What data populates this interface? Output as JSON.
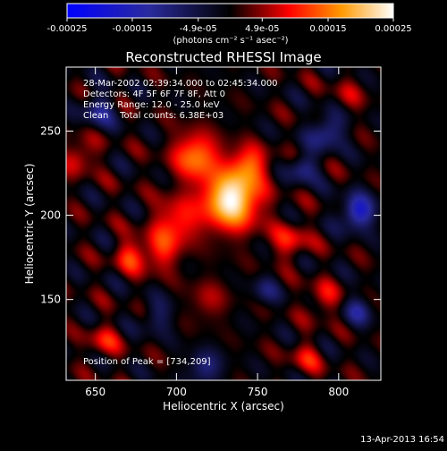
{
  "colorbar": {
    "tick_labels": [
      "-0.00025",
      "-0.00015",
      "-4.9e-05",
      "4.9e-05",
      "0.00015",
      "0.00025"
    ],
    "tick_values": [
      -0.00025,
      -0.00015,
      -4.9e-05,
      4.9e-05,
      0.00015,
      0.00025
    ],
    "range": [
      -0.00025,
      0.00025
    ],
    "units_label": "(photons cm⁻² s⁻¹ asec⁻²)",
    "colors": [
      "#0000ff",
      "#000000",
      "#ff0000",
      "#ff9900",
      "#ffffff"
    ]
  },
  "chart_data": {
    "type": "heatmap",
    "title": "Reconstructed RHESSI Image",
    "xlabel": "Heliocentric X (arcsec)",
    "ylabel": "Heliocentric Y (arcsec)",
    "xlim": [
      632,
      826
    ],
    "ylim": [
      102,
      288
    ],
    "x_ticks": [
      650,
      700,
      750,
      800
    ],
    "y_ticks": [
      150,
      200,
      250
    ],
    "peak": {
      "x": 734,
      "y": 209
    },
    "sources": [
      {
        "x": 734,
        "y": 209,
        "sigma": 12,
        "amp": 0.00025
      },
      {
        "x": 712,
        "y": 235,
        "sigma": 10,
        "amp": 0.00015
      },
      {
        "x": 745,
        "y": 230,
        "sigma": 8,
        "amp": 0.00012
      },
      {
        "x": 700,
        "y": 196,
        "sigma": 10,
        "amp": 0.00011
      },
      {
        "x": 672,
        "y": 176,
        "sigma": 7,
        "amp": 0.0001
      },
      {
        "x": 690,
        "y": 178,
        "sigma": 8,
        "amp": 9e-05
      },
      {
        "x": 640,
        "y": 235,
        "sigma": 7,
        "amp": 9e-05
      },
      {
        "x": 655,
        "y": 125,
        "sigma": 7,
        "amp": 8e-05
      },
      {
        "x": 790,
        "y": 150,
        "sigma": 7,
        "amp": 8e-05
      },
      {
        "x": 770,
        "y": 185,
        "sigma": 8,
        "amp": 9e-05
      },
      {
        "x": 780,
        "y": 115,
        "sigma": 7,
        "amp": 7e-05
      },
      {
        "x": 805,
        "y": 270,
        "sigma": 7,
        "amp": 5e-05
      },
      {
        "x": 720,
        "y": 150,
        "sigma": 8,
        "amp": 6e-05
      },
      {
        "x": 812,
        "y": 202,
        "sigma": 7,
        "amp": -0.00018
      },
      {
        "x": 793,
        "y": 250,
        "sigma": 7,
        "amp": -0.00013
      },
      {
        "x": 778,
        "y": 228,
        "sigma": 6,
        "amp": -0.00011
      },
      {
        "x": 652,
        "y": 262,
        "sigma": 7,
        "amp": -0.0001
      },
      {
        "x": 718,
        "y": 110,
        "sigma": 7,
        "amp": -0.0001
      },
      {
        "x": 812,
        "y": 143,
        "sigma": 6,
        "amp": -0.0001
      },
      {
        "x": 688,
        "y": 140,
        "sigma": 7,
        "amp": -7e-05
      },
      {
        "x": 755,
        "y": 155,
        "sigma": 6,
        "amp": -7e-05
      }
    ],
    "ripple": {
      "amp": 6e-05,
      "kx": 0.17,
      "ky": 0.17
    },
    "info_lines": [
      "28-Mar-2002 02:39:34.000 to 02:45:34.000",
      "Detectors: 4F 5F 6F 7F 8F, Att 0",
      "Energy Range: 12.0 - 25.0 keV",
      "Clean    Total counts: 6.38E+03"
    ],
    "peak_label": "Position of Peak = [734,209]"
  },
  "timestamp": "13-Apr-2013 16:54"
}
